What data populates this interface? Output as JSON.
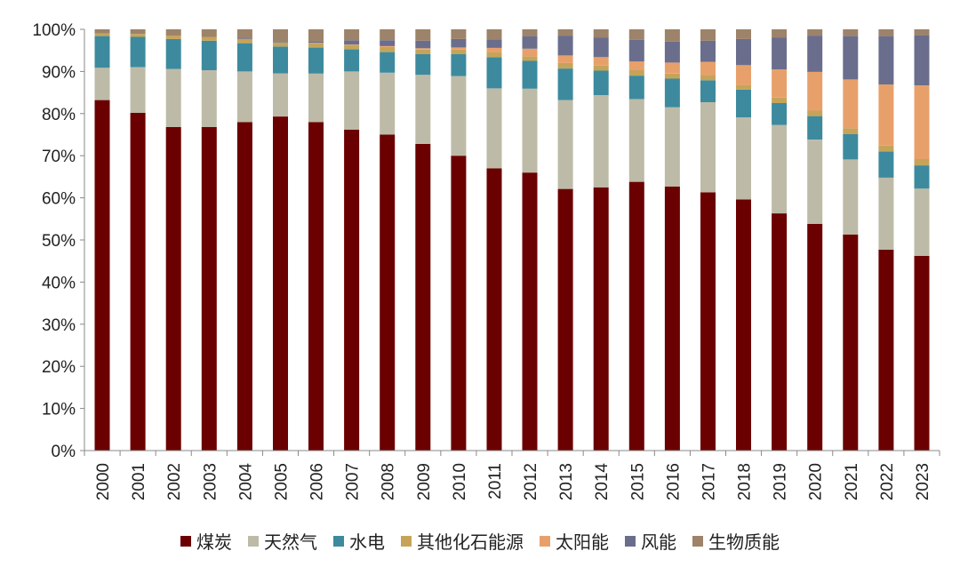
{
  "chart_data": {
    "type": "bar",
    "stacked": true,
    "title": "",
    "xlabel": "",
    "ylabel": "",
    "ylim": [
      0,
      100
    ],
    "yticks": [
      "0%",
      "10%",
      "20%",
      "30%",
      "40%",
      "50%",
      "60%",
      "70%",
      "80%",
      "90%",
      "100%"
    ],
    "categories": [
      "2000",
      "2001",
      "2002",
      "2003",
      "2004",
      "2005",
      "2006",
      "2007",
      "2008",
      "2009",
      "2010",
      "2011",
      "2012",
      "2013",
      "2014",
      "2015",
      "2016",
      "2017",
      "2018",
      "2019",
      "2020",
      "2021",
      "2022",
      "2023"
    ],
    "series": [
      {
        "name": "煤炭",
        "color": "#6b0000",
        "values": [
          83.2,
          80.2,
          76.8,
          76.8,
          78.0,
          79.3,
          78.0,
          76.2,
          75.0,
          72.8,
          70.0,
          67.0,
          66.0,
          62.1,
          62.5,
          63.8,
          62.7,
          61.3,
          59.6,
          56.3,
          53.8,
          51.3,
          47.7,
          46.2
        ]
      },
      {
        "name": "天然气",
        "color": "#bdbba7",
        "values": [
          7.7,
          10.8,
          13.8,
          13.5,
          12.0,
          10.2,
          11.5,
          13.8,
          14.7,
          16.4,
          18.9,
          19.0,
          19.9,
          21.1,
          21.9,
          19.6,
          18.8,
          21.4,
          19.5,
          21.0,
          20.0,
          17.8,
          17.1,
          16.0
        ]
      },
      {
        "name": "水电",
        "color": "#3d8a9e",
        "values": [
          7.5,
          7.2,
          7.1,
          7.0,
          6.7,
          6.4,
          6.2,
          5.3,
          4.9,
          4.9,
          5.2,
          7.4,
          6.6,
          7.5,
          5.8,
          5.6,
          6.8,
          5.2,
          6.6,
          5.2,
          5.6,
          6.0,
          6.2,
          5.5
        ]
      },
      {
        "name": "其他化石能源",
        "color": "#c5a45a",
        "values": [
          0.6,
          0.7,
          0.8,
          0.9,
          0.9,
          1.0,
          1.0,
          1.0,
          1.2,
          1.1,
          1.1,
          1.2,
          1.1,
          1.3,
          1.2,
          1.3,
          1.2,
          1.3,
          1.1,
          1.3,
          1.3,
          1.4,
          1.4,
          1.5
        ]
      },
      {
        "name": "太阳能",
        "color": "#e8a06b",
        "values": [
          0.0,
          0.0,
          0.0,
          0.0,
          0.0,
          0.0,
          0.1,
          0.1,
          0.2,
          0.3,
          0.5,
          1.0,
          1.8,
          1.8,
          2.0,
          2.1,
          2.6,
          3.1,
          4.7,
          6.7,
          9.2,
          11.6,
          14.5,
          17.5
        ]
      },
      {
        "name": "风能",
        "color": "#6a6e8c",
        "values": [
          0.0,
          0.0,
          0.0,
          0.0,
          0.2,
          0.3,
          0.4,
          1.0,
          1.4,
          1.8,
          2.0,
          2.0,
          3.0,
          4.7,
          4.6,
          5.1,
          5.0,
          5.0,
          6.2,
          7.5,
          8.6,
          10.3,
          11.5,
          11.9
        ]
      },
      {
        "name": "生物质能",
        "color": "#9d836a",
        "values": [
          1.0,
          1.1,
          1.5,
          1.8,
          2.2,
          2.8,
          2.8,
          2.6,
          2.6,
          2.7,
          2.3,
          2.4,
          1.6,
          1.5,
          2.0,
          2.5,
          2.9,
          2.7,
          2.3,
          2.0,
          1.5,
          1.6,
          1.6,
          1.4
        ]
      }
    ],
    "legend_position": "bottom"
  }
}
